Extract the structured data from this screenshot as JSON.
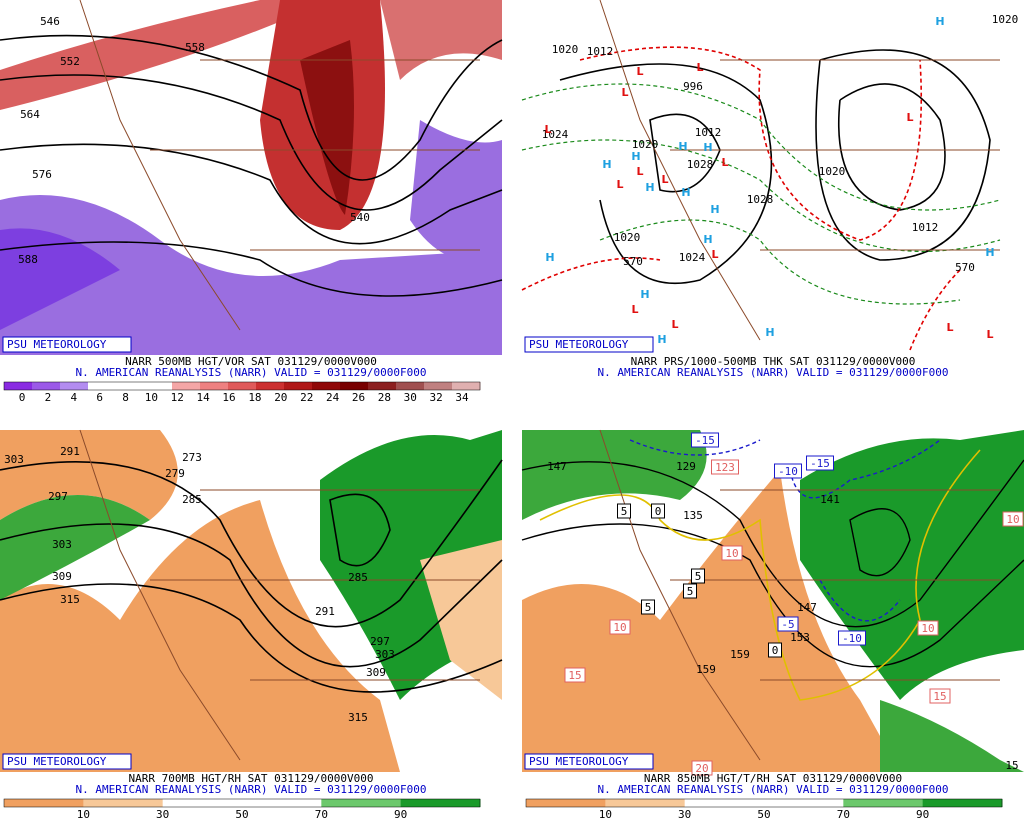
{
  "panels": [
    {
      "branding": "PSU METEOROLOGY",
      "title": "NARR 500MB HGT/VOR SAT 031129/0000V000",
      "subtitle": "N. AMERICAN REANALYSIS (NARR) VALID = 031129/0000F000",
      "colorbar": {
        "colors": [
          "#8a2be2",
          "#9b59e8",
          "#b38cf0",
          "#ffffff",
          "#ffffff",
          "#ffffff",
          "#f4a6a6",
          "#ee8080",
          "#e05a5a",
          "#cc3030",
          "#b01818",
          "#900808",
          "#780000",
          "#8c2020",
          "#a05050",
          "#c08080",
          "#e0b0b0"
        ],
        "labels": [
          0,
          2,
          4,
          6,
          8,
          10,
          12,
          14,
          16,
          18,
          20,
          22,
          24,
          26,
          28,
          30,
          32,
          34
        ]
      },
      "contour_labels": [
        "546",
        "552",
        "558",
        "564",
        "576",
        "588",
        "540"
      ]
    },
    {
      "branding": "PSU METEOROLOGY",
      "title": "NARR PRS/1000-500MB THK SAT 031129/0000V000",
      "subtitle": "N. AMERICAN REANALYSIS (NARR) VALID = 031129/0000F000",
      "contour_labels": [
        "1020",
        "1012",
        "996",
        "1012",
        "1020",
        "1028",
        "1020",
        "1028",
        "1020",
        "1024",
        "570",
        "570",
        "1012",
        "1020",
        "1024"
      ],
      "centers": [
        "L",
        "L",
        "L",
        "L",
        "L",
        "L",
        "L",
        "L",
        "L",
        "L",
        "L",
        "L",
        "L",
        "L",
        "H",
        "H",
        "H",
        "H",
        "H",
        "H",
        "H",
        "H",
        "H",
        "H",
        "H",
        "H",
        "H",
        "H"
      ]
    },
    {
      "branding": "PSU METEOROLOGY",
      "title": "NARR 700MB HGT/RH SAT 031129/0000V000",
      "subtitle": "N. AMERICAN REANALYSIS (NARR) VALID = 031129/0000F000",
      "colorbar": {
        "colors": [
          "#f0a060",
          "#f7c898",
          "#ffffff",
          "#ffffff",
          "#6cc86c",
          "#1a9a2a"
        ],
        "labels": [
          10,
          30,
          50,
          70,
          90
        ]
      },
      "contour_labels": [
        "303",
        "291",
        "279",
        "273",
        "285",
        "297",
        "303",
        "309",
        "315",
        "285",
        "291",
        "297",
        "303",
        "309",
        "315"
      ]
    },
    {
      "branding": "PSU METEOROLOGY",
      "title": "NARR 850MB HGT/T/RH SAT 031129/0000V000",
      "subtitle": "N. AMERICAN REANALYSIS (NARR) VALID = 031129/0000F000",
      "colorbar": {
        "colors": [
          "#f0a060",
          "#f7c898",
          "#ffffff",
          "#ffffff",
          "#6cc86c",
          "#1a9a2a"
        ],
        "labels": [
          10,
          30,
          50,
          70,
          90
        ]
      },
      "contour_labels": [
        "147",
        "129",
        "123",
        "-15",
        "-15",
        "-10",
        "141",
        "135",
        "5",
        "0",
        "10",
        "5",
        "5",
        "5",
        "10",
        "-5",
        "147",
        "153",
        "-10",
        "0",
        "159",
        "159",
        "15",
        "10",
        "15",
        "15",
        "10",
        "20"
      ]
    }
  ]
}
